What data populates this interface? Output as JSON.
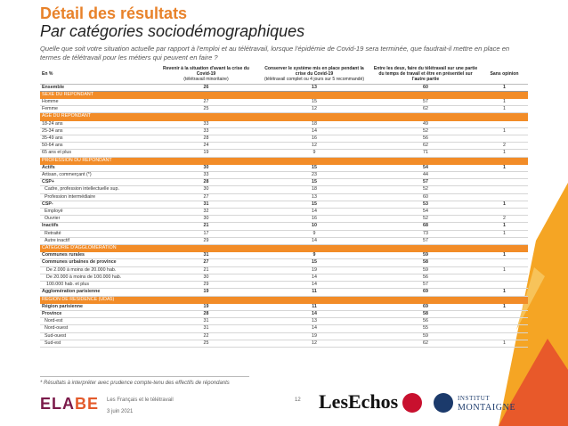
{
  "header": {
    "title": "Détail des résultats",
    "subtitle": "Par catégories sociodémographiques",
    "question": "Quelle que soit votre situation actuelle par rapport à l'emploi et au télétravail, lorsque l'épidémie de Covid-19 sera terminée, que faudrait-il mettre en place en termes de télétravail pour les métiers qui peuvent en faire ?"
  },
  "table": {
    "col0": "En %",
    "col1_bold": "Revenir à la situation d'avant la crise du Covid-19",
    "col1_sub": "(télétravail minoritaire)",
    "col2_bold": "Conserver le système mis en place pendant la crise du Covid-19",
    "col2_sub": "(télétravail complet ou 4 jours sur 5 recommandé)",
    "col3": "Entre les deux, faire du télétravail sur une partie du temps de travail et être en présentiel sur l'autre partie",
    "col4": "Sans opinion",
    "rows": [
      {
        "type": "total",
        "label": "Ensemble",
        "v": [
          "26",
          "13",
          "60",
          "1"
        ]
      },
      {
        "type": "section",
        "label": "SEXE DU REPONDANT"
      },
      {
        "type": "row",
        "label": "Homme",
        "v": [
          "27",
          "15",
          "57",
          "1"
        ]
      },
      {
        "type": "row",
        "label": "Femme",
        "v": [
          "25",
          "12",
          "62",
          "1"
        ]
      },
      {
        "type": "section",
        "label": "AGE DU REPONDANT"
      },
      {
        "type": "row",
        "label": "18-24 ans",
        "v": [
          "33",
          "18",
          "49",
          ""
        ]
      },
      {
        "type": "row",
        "label": "25-34 ans",
        "v": [
          "33",
          "14",
          "52",
          "1"
        ]
      },
      {
        "type": "row",
        "label": "35-49 ans",
        "v": [
          "28",
          "16",
          "56",
          ""
        ]
      },
      {
        "type": "row",
        "label": "50-64 ans",
        "v": [
          "24",
          "12",
          "62",
          "2"
        ]
      },
      {
        "type": "row",
        "label": "65 ans et plus",
        "v": [
          "19",
          "9",
          "71",
          "1"
        ]
      },
      {
        "type": "section",
        "label": "PROFESSION DU REPONDANT"
      },
      {
        "type": "bold",
        "label": "Actifs",
        "v": [
          "30",
          "15",
          "54",
          "1"
        ]
      },
      {
        "type": "row",
        "label": "Artisan, commerçant (*)",
        "v": [
          "33",
          "23",
          "44",
          ""
        ]
      },
      {
        "type": "bold",
        "label": "CSP+",
        "v": [
          "28",
          "15",
          "57",
          ""
        ]
      },
      {
        "type": "ind",
        "label": "Cadre, profession intellectuelle sup.",
        "v": [
          "30",
          "18",
          "52",
          ""
        ]
      },
      {
        "type": "ind",
        "label": "Profession intermédiaire",
        "v": [
          "27",
          "13",
          "60",
          ""
        ]
      },
      {
        "type": "bold",
        "label": "CSP-",
        "v": [
          "31",
          "15",
          "53",
          "1"
        ]
      },
      {
        "type": "ind",
        "label": "Employé",
        "v": [
          "32",
          "14",
          "54",
          ""
        ]
      },
      {
        "type": "ind",
        "label": "Ouvrier",
        "v": [
          "30",
          "16",
          "52",
          "2"
        ]
      },
      {
        "type": "bold",
        "label": "Inactifs",
        "v": [
          "21",
          "10",
          "68",
          "1"
        ]
      },
      {
        "type": "ind",
        "label": "Retraité",
        "v": [
          "17",
          "9",
          "73",
          "1"
        ]
      },
      {
        "type": "ind",
        "label": "Autre inactif",
        "v": [
          "29",
          "14",
          "57",
          ""
        ]
      },
      {
        "type": "section",
        "label": "CATEGORIE D'AGGLOMERATION"
      },
      {
        "type": "bold",
        "label": "Communes rurales",
        "v": [
          "31",
          "9",
          "59",
          "1"
        ]
      },
      {
        "type": "bold",
        "label": "Communes urbaines de province",
        "v": [
          "27",
          "15",
          "58",
          ""
        ]
      },
      {
        "type": "ind2",
        "label": "De 2.000 à moins de 20.000 hab.",
        "v": [
          "21",
          "19",
          "59",
          "1"
        ]
      },
      {
        "type": "ind2",
        "label": "De 20.000 à moins de 100.000 hab.",
        "v": [
          "30",
          "14",
          "56",
          ""
        ]
      },
      {
        "type": "ind2",
        "label": "100.000 hab. et plus",
        "v": [
          "29",
          "14",
          "57",
          ""
        ]
      },
      {
        "type": "bold",
        "label": "Agglomération parisienne",
        "v": [
          "19",
          "11",
          "69",
          "1"
        ]
      },
      {
        "type": "section",
        "label": "REGION DE RESIDENCE (UDA5)"
      },
      {
        "type": "bold",
        "label": "Région parisienne",
        "v": [
          "19",
          "11",
          "69",
          "1"
        ]
      },
      {
        "type": "bold",
        "label": "Province",
        "v": [
          "28",
          "14",
          "58",
          ""
        ]
      },
      {
        "type": "ind",
        "label": "Nord-est",
        "v": [
          "31",
          "13",
          "56",
          ""
        ]
      },
      {
        "type": "ind",
        "label": "Nord-ouest",
        "v": [
          "31",
          "14",
          "55",
          ""
        ]
      },
      {
        "type": "ind",
        "label": "Sud-ouest",
        "v": [
          "22",
          "19",
          "59",
          ""
        ]
      },
      {
        "type": "ind",
        "label": "Sud-est",
        "v": [
          "25",
          "12",
          "62",
          "1"
        ]
      }
    ]
  },
  "footer": {
    "note": "* Résultats à interpréter avec prudence compte-tenu des effectifs de répondants",
    "report_title": "Les Français et le télétravail",
    "date": "3 juin 2021",
    "page_number": "12",
    "logo_elabe_1": "ELA",
    "logo_elabe_2": "BE",
    "logo_lesechos": "LesEchos",
    "logo_institut": "INSTITUT",
    "logo_montaigne": "MONTAIGNE"
  },
  "colors": {
    "accent": "#E8822A",
    "section_band": "#F28C28",
    "elabe_purple": "#7B1A4A",
    "montaigne_blue": "#1B3A6B",
    "radio_red": "#C8102E"
  }
}
